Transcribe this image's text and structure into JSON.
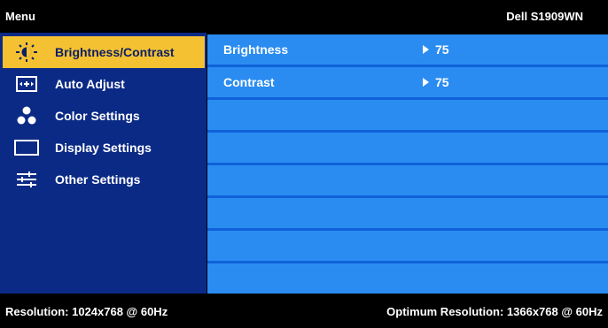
{
  "header": {
    "menu_title": "Menu",
    "model": "Dell S1909WN"
  },
  "sidebar": {
    "items": [
      {
        "label": "Brightness/Contrast",
        "icon": "sun-icon",
        "selected": true
      },
      {
        "label": "Auto Adjust",
        "icon": "auto-adjust-icon",
        "selected": false
      },
      {
        "label": "Color Settings",
        "icon": "color-dots-icon",
        "selected": false
      },
      {
        "label": "Display Settings",
        "icon": "display-rectangle-icon",
        "selected": false
      },
      {
        "label": "Other Settings",
        "icon": "sliders-icon",
        "selected": false
      }
    ]
  },
  "content": {
    "rows": [
      {
        "label": "Brightness",
        "value": "75"
      },
      {
        "label": "Contrast",
        "value": "75"
      }
    ]
  },
  "footer": {
    "resolution": "Resolution: 1024x768 @ 60Hz",
    "optimum": "Optimum Resolution: 1366x768 @ 60Hz"
  },
  "colors": {
    "sidebar_bg": "#0b2a86",
    "selected_bg": "#f3c132",
    "content_bg": "#1060d8",
    "row_bg": "#2a8cf0"
  }
}
